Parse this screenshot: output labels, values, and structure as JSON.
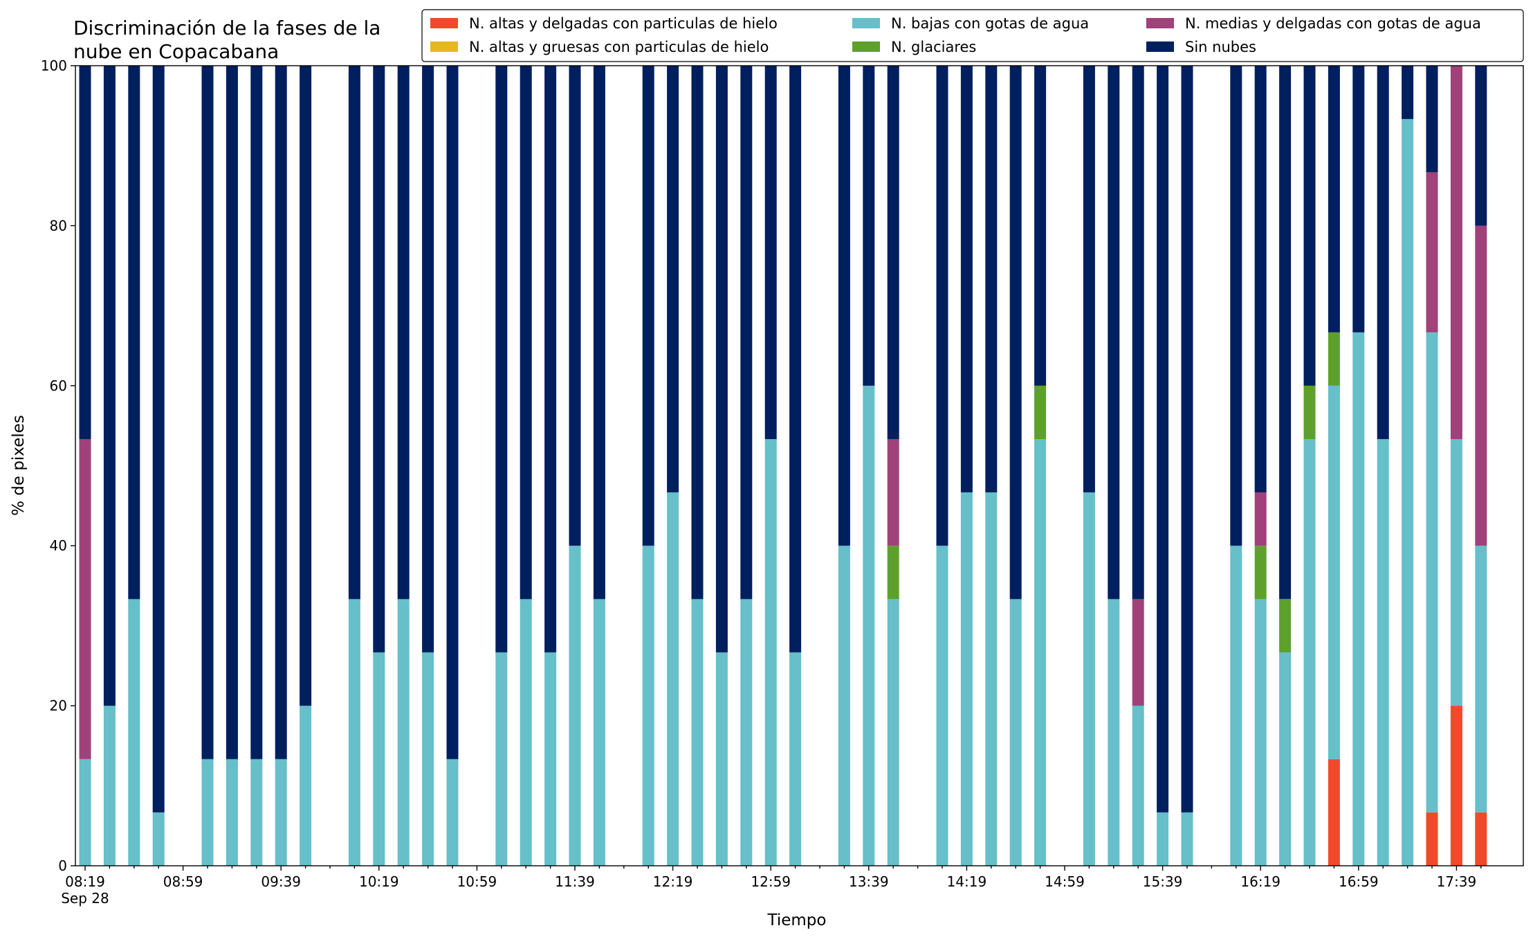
{
  "chart_data": {
    "type": "stacked_bar",
    "title": "Discriminación de la fases de la\nnube en Copacabana",
    "xlabel": "Tiempo",
    "ylabel": "% de pixeles",
    "x_date_label": "Sep 28",
    "categories": [
      "08:19",
      null,
      null,
      null,
      "08:59",
      null,
      null,
      null,
      "09:39",
      null,
      null,
      null,
      "10:19",
      null,
      null,
      null,
      "10:59",
      null,
      null,
      null,
      "11:39",
      null,
      null,
      null,
      "12:19",
      null,
      null,
      null,
      "12:59",
      null,
      null,
      null,
      "13:39",
      null,
      null,
      null,
      "14:19",
      null,
      null,
      null,
      "14:59",
      null,
      null,
      null,
      "15:39",
      null,
      null,
      null,
      "16:19",
      null,
      null,
      null,
      "16:59",
      null,
      null,
      null,
      "17:39",
      null
    ],
    "ylim": [
      0,
      100
    ],
    "yticks": [
      0,
      20,
      40,
      60,
      80,
      100
    ],
    "legend": "top right",
    "series": [
      {
        "name": "N. altas y delgadas con particulas de hielo",
        "color": "#f04a2a",
        "values": [
          0,
          0,
          0,
          0,
          null,
          0,
          0,
          0,
          0,
          0,
          null,
          0,
          0,
          0,
          0,
          0,
          null,
          0,
          0,
          0,
          0,
          0,
          null,
          0,
          0,
          0,
          0,
          0,
          0,
          0,
          null,
          0,
          0,
          0,
          null,
          0,
          0,
          0,
          0,
          0,
          null,
          0,
          0,
          0,
          0,
          0,
          null,
          0,
          0,
          0,
          0,
          13.33,
          0,
          0,
          0,
          6.67,
          20,
          6.67
        ]
      },
      {
        "name": "N. altas y gruesas con particulas de hielo",
        "color": "#e5b81f",
        "values": [
          0,
          0,
          0,
          0,
          null,
          0,
          0,
          0,
          0,
          0,
          null,
          0,
          0,
          0,
          0,
          0,
          null,
          0,
          0,
          0,
          0,
          0,
          null,
          0,
          0,
          0,
          0,
          0,
          0,
          0,
          null,
          0,
          0,
          0,
          null,
          0,
          0,
          0,
          0,
          0,
          null,
          0,
          0,
          0,
          0,
          0,
          null,
          0,
          0,
          0,
          0,
          0,
          0,
          0,
          0,
          0,
          0,
          0
        ]
      },
      {
        "name": "N. bajas con gotas de agua",
        "color": "#66bfc9",
        "values": [
          13.33,
          20,
          33.33,
          6.67,
          null,
          13.33,
          13.33,
          13.33,
          13.33,
          20,
          null,
          33.33,
          26.67,
          33.33,
          26.67,
          13.33,
          null,
          26.67,
          33.33,
          26.67,
          40,
          33.33,
          null,
          40,
          46.67,
          33.33,
          26.67,
          33.33,
          53.33,
          26.67,
          null,
          40,
          60,
          33.33,
          null,
          40,
          46.67,
          46.67,
          33.33,
          53.33,
          null,
          46.67,
          33.33,
          20,
          6.67,
          6.67,
          null,
          40,
          33.33,
          26.67,
          53.33,
          46.67,
          66.67,
          53.33,
          93.33,
          60,
          33.33,
          33.33
        ]
      },
      {
        "name": "N. glaciares",
        "color": "#5ea02c",
        "values": [
          0,
          0,
          0,
          0,
          null,
          0,
          0,
          0,
          0,
          0,
          null,
          0,
          0,
          0,
          0,
          0,
          null,
          0,
          0,
          0,
          0,
          0,
          null,
          0,
          0,
          0,
          0,
          0,
          0,
          0,
          null,
          0,
          0,
          6.67,
          null,
          0,
          0,
          0,
          0,
          6.67,
          null,
          0,
          0,
          0,
          0,
          0,
          null,
          0,
          6.67,
          6.67,
          6.67,
          6.67,
          0,
          0,
          0,
          0,
          0,
          0
        ]
      },
      {
        "name": "N. medias y delgadas con gotas de agua",
        "color": "#a0417a",
        "values": [
          40,
          0,
          0,
          0,
          null,
          0,
          0,
          0,
          0,
          0,
          null,
          0,
          0,
          0,
          0,
          0,
          null,
          0,
          0,
          0,
          0,
          0,
          null,
          0,
          0,
          0,
          0,
          0,
          0,
          0,
          null,
          0,
          0,
          13.33,
          null,
          0,
          0,
          0,
          0,
          0,
          null,
          0,
          0,
          13.33,
          0,
          0,
          null,
          0,
          6.67,
          0,
          0,
          0,
          0,
          0,
          0,
          20,
          46.67,
          40
        ]
      },
      {
        "name": "Sin nubes",
        "color": "#001f5f",
        "values": [
          46.67,
          80,
          66.67,
          93.33,
          null,
          86.67,
          86.67,
          86.67,
          86.67,
          80,
          null,
          66.67,
          73.33,
          66.67,
          73.33,
          86.67,
          null,
          73.33,
          66.67,
          73.33,
          60,
          66.67,
          null,
          60,
          53.33,
          66.67,
          73.33,
          66.67,
          46.67,
          73.33,
          null,
          60,
          40,
          46.67,
          null,
          60,
          53.33,
          53.33,
          66.67,
          40,
          null,
          53.33,
          66.67,
          66.67,
          93.33,
          93.33,
          null,
          60,
          53.33,
          66.67,
          40,
          33.33,
          33.33,
          46.67,
          6.67,
          13.33,
          0,
          20
        ]
      }
    ]
  }
}
